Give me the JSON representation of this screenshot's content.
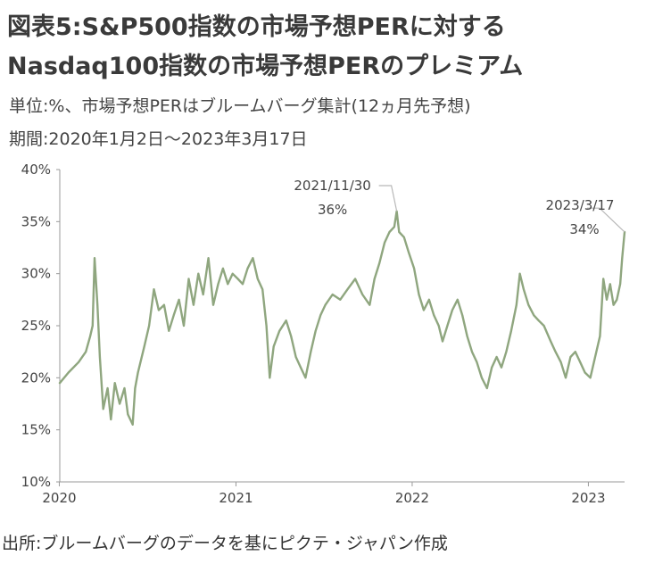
{
  "header": {
    "title_line1": "図表5:S&P500指数の市場予想PERに対する",
    "title_line2": "Nasdaq100指数の市場予想PERのプレミアム",
    "unit_note": "単位:%、市場予想PERはブルームバーグ集計(12ヵ月先予想)",
    "period_note": "期間:2020年1月2日～2023年3月17日"
  },
  "footer": {
    "source": "出所:ブルームバーグのデータを基にピクテ・ジャパン作成"
  },
  "chart_data": {
    "type": "line",
    "title": "",
    "xlabel": "",
    "ylabel": "",
    "ylim": [
      10,
      40
    ],
    "grid": false,
    "legend": "none",
    "y_ticks": [
      "10%",
      "15%",
      "20%",
      "25%",
      "30%",
      "35%",
      "40%"
    ],
    "x_ticks": [
      {
        "label": "2020",
        "date": "2020-01-01"
      },
      {
        "label": "2021",
        "date": "2021-01-01"
      },
      {
        "label": "2022",
        "date": "2022-01-01"
      },
      {
        "label": "2023",
        "date": "2023-01-01"
      }
    ],
    "x_range": [
      "2020-01-02",
      "2023-03-17"
    ],
    "series": [
      {
        "color": "#8fa67f",
        "points": [
          [
            "2020-01-02",
            19.5
          ],
          [
            "2020-01-20",
            20.5
          ],
          [
            "2020-02-10",
            21.5
          ],
          [
            "2020-02-25",
            22.5
          ],
          [
            "2020-03-05",
            24.0
          ],
          [
            "2020-03-10",
            25.0
          ],
          [
            "2020-03-14",
            31.5
          ],
          [
            "2020-03-20",
            27.0
          ],
          [
            "2020-03-25",
            22.0
          ],
          [
            "2020-04-01",
            17.0
          ],
          [
            "2020-04-10",
            19.0
          ],
          [
            "2020-04-17",
            16.0
          ],
          [
            "2020-04-25",
            19.5
          ],
          [
            "2020-05-05",
            17.5
          ],
          [
            "2020-05-15",
            19.0
          ],
          [
            "2020-05-22",
            16.5
          ],
          [
            "2020-06-01",
            15.5
          ],
          [
            "2020-06-06",
            19.0
          ],
          [
            "2020-06-12",
            20.5
          ],
          [
            "2020-06-25",
            23.0
          ],
          [
            "2020-07-05",
            25.0
          ],
          [
            "2020-07-15",
            28.5
          ],
          [
            "2020-07-25",
            26.5
          ],
          [
            "2020-08-05",
            27.0
          ],
          [
            "2020-08-15",
            24.5
          ],
          [
            "2020-08-25",
            26.0
          ],
          [
            "2020-09-05",
            27.5
          ],
          [
            "2020-09-15",
            25.0
          ],
          [
            "2020-09-25",
            29.5
          ],
          [
            "2020-10-05",
            27.0
          ],
          [
            "2020-10-15",
            30.0
          ],
          [
            "2020-10-25",
            28.0
          ],
          [
            "2020-11-05",
            31.5
          ],
          [
            "2020-11-15",
            27.0
          ],
          [
            "2020-11-25",
            29.0
          ],
          [
            "2020-12-05",
            30.5
          ],
          [
            "2020-12-15",
            29.0
          ],
          [
            "2020-12-25",
            30.0
          ],
          [
            "2021-01-05",
            29.5
          ],
          [
            "2021-01-15",
            29.0
          ],
          [
            "2021-01-25",
            30.5
          ],
          [
            "2021-02-05",
            31.5
          ],
          [
            "2021-02-15",
            29.5
          ],
          [
            "2021-02-25",
            28.5
          ],
          [
            "2021-03-05",
            25.0
          ],
          [
            "2021-03-12",
            20.0
          ],
          [
            "2021-03-20",
            23.0
          ],
          [
            "2021-04-01",
            24.5
          ],
          [
            "2021-04-15",
            25.5
          ],
          [
            "2021-04-25",
            24.0
          ],
          [
            "2021-05-05",
            22.0
          ],
          [
            "2021-05-15",
            21.0
          ],
          [
            "2021-05-25",
            20.0
          ],
          [
            "2021-06-05",
            22.5
          ],
          [
            "2021-06-15",
            24.5
          ],
          [
            "2021-06-25",
            26.0
          ],
          [
            "2021-07-05",
            27.0
          ],
          [
            "2021-07-20",
            28.0
          ],
          [
            "2021-08-05",
            27.5
          ],
          [
            "2021-08-20",
            28.5
          ],
          [
            "2021-09-05",
            29.5
          ],
          [
            "2021-09-20",
            28.0
          ],
          [
            "2021-10-05",
            27.0
          ],
          [
            "2021-10-15",
            29.5
          ],
          [
            "2021-10-25",
            31.0
          ],
          [
            "2021-11-05",
            33.0
          ],
          [
            "2021-11-15",
            34.0
          ],
          [
            "2021-11-25",
            34.5
          ],
          [
            "2021-11-30",
            36.0
          ],
          [
            "2021-12-05",
            34.0
          ],
          [
            "2021-12-15",
            33.5
          ],
          [
            "2021-12-25",
            32.0
          ],
          [
            "2022-01-05",
            30.5
          ],
          [
            "2022-01-15",
            28.0
          ],
          [
            "2022-01-25",
            26.5
          ],
          [
            "2022-02-05",
            27.5
          ],
          [
            "2022-02-15",
            26.0
          ],
          [
            "2022-02-25",
            25.0
          ],
          [
            "2022-03-05",
            23.5
          ],
          [
            "2022-03-15",
            25.0
          ],
          [
            "2022-03-25",
            26.5
          ],
          [
            "2022-04-05",
            27.5
          ],
          [
            "2022-04-15",
            26.0
          ],
          [
            "2022-04-25",
            24.0
          ],
          [
            "2022-05-05",
            22.5
          ],
          [
            "2022-05-15",
            21.5
          ],
          [
            "2022-05-25",
            20.0
          ],
          [
            "2022-06-05",
            19.0
          ],
          [
            "2022-06-15",
            21.0
          ],
          [
            "2022-06-25",
            22.0
          ],
          [
            "2022-07-05",
            21.0
          ],
          [
            "2022-07-15",
            22.5
          ],
          [
            "2022-07-25",
            24.5
          ],
          [
            "2022-08-05",
            27.0
          ],
          [
            "2022-08-12",
            30.0
          ],
          [
            "2022-08-20",
            28.5
          ],
          [
            "2022-08-30",
            27.0
          ],
          [
            "2022-09-10",
            26.0
          ],
          [
            "2022-09-20",
            25.5
          ],
          [
            "2022-10-01",
            25.0
          ],
          [
            "2022-10-15",
            23.5
          ],
          [
            "2022-10-25",
            22.5
          ],
          [
            "2022-11-05",
            21.5
          ],
          [
            "2022-11-15",
            20.0
          ],
          [
            "2022-11-25",
            22.0
          ],
          [
            "2022-12-05",
            22.5
          ],
          [
            "2022-12-15",
            21.5
          ],
          [
            "2022-12-25",
            20.5
          ],
          [
            "2023-01-05",
            20.0
          ],
          [
            "2023-01-15",
            22.0
          ],
          [
            "2023-01-25",
            24.0
          ],
          [
            "2023-02-01",
            29.5
          ],
          [
            "2023-02-08",
            27.5
          ],
          [
            "2023-02-15",
            29.0
          ],
          [
            "2023-02-22",
            27.0
          ],
          [
            "2023-03-01",
            27.5
          ],
          [
            "2023-03-08",
            29.0
          ],
          [
            "2023-03-12",
            31.5
          ],
          [
            "2023-03-17",
            34.0
          ]
        ]
      }
    ],
    "annotations": [
      {
        "date_label": "2021/11/30",
        "value_label": "36%",
        "x": "2021-11-30",
        "y": 36.0
      },
      {
        "date_label": "2023/3/17",
        "value_label": "34%",
        "x": "2023-03-17",
        "y": 34.0
      }
    ]
  }
}
